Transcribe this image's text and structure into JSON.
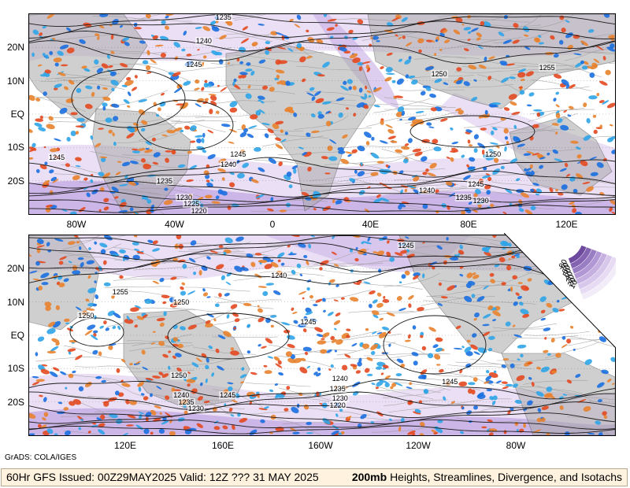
{
  "colors": {
    "isotach_light": "#e6d9f2",
    "isotach_mid": "#c7aee4",
    "isotach_dark": "#8a68b8",
    "divergence_red": "#e3491f",
    "divergence_orange": "#e8822e",
    "convergence_blue": "#1a6fe0",
    "convergence_lightblue": "#2fa4e8",
    "land": "#a9a9a9",
    "contour": "#1a1a1a",
    "streamline": "#9a9a9a",
    "bar_bg": "#fff3df"
  },
  "top_panel": {
    "lat_labels": [
      "20N",
      "10N",
      "EQ",
      "10S",
      "20S"
    ],
    "lon_labels": [
      "80W",
      "40W",
      "0",
      "40E",
      "80E",
      "120E"
    ],
    "contour_labels": [
      {
        "text": "1235",
        "lon": -20,
        "lat": 29
      },
      {
        "text": "1240",
        "lon": -28,
        "lat": 22
      },
      {
        "text": "1245",
        "lon": -32,
        "lat": 15
      },
      {
        "text": "1250",
        "lon": 68,
        "lat": 12
      },
      {
        "text": "1255",
        "lon": 112,
        "lat": 14
      },
      {
        "text": "1245",
        "lon": -88,
        "lat": -13
      },
      {
        "text": "1240",
        "lon": -18,
        "lat": -15
      },
      {
        "text": "1245",
        "lon": -14,
        "lat": -12
      },
      {
        "text": "1235",
        "lon": -44,
        "lat": -20
      },
      {
        "text": "1230",
        "lon": -36,
        "lat": -25
      },
      {
        "text": "1225",
        "lon": -33,
        "lat": -27
      },
      {
        "text": "1220",
        "lon": -30,
        "lat": -29
      },
      {
        "text": "1250",
        "lon": 90,
        "lat": -12
      },
      {
        "text": "1245",
        "lon": 83,
        "lat": -21
      },
      {
        "text": "1240",
        "lon": 63,
        "lat": -23
      },
      {
        "text": "1235",
        "lon": 78,
        "lat": -25
      },
      {
        "text": "1230",
        "lon": 85,
        "lat": -26
      }
    ]
  },
  "bottom_panel": {
    "lat_labels": [
      "20N",
      "10N",
      "EQ",
      "10S",
      "20S"
    ],
    "lon_labels": [
      "120E",
      "160E",
      "160W",
      "120W",
      "80W"
    ],
    "contour_labels": [
      {
        "text": "1245",
        "lon": -125,
        "lat": 27
      },
      {
        "text": "1240",
        "lon": -177,
        "lat": 18
      },
      {
        "text": "1255",
        "lon": 118,
        "lat": 13
      },
      {
        "text": "1250",
        "lon": 143,
        "lat": 10
      },
      {
        "text": "1250",
        "lon": 104,
        "lat": 6
      },
      {
        "text": "1245",
        "lon": -165,
        "lat": 4
      },
      {
        "text": "1250",
        "lon": 142,
        "lat": -12
      },
      {
        "text": "1240",
        "lon": 143,
        "lat": -18
      },
      {
        "text": "1235",
        "lon": 145,
        "lat": -20
      },
      {
        "text": "1230",
        "lon": 149,
        "lat": -22
      },
      {
        "text": "1245",
        "lon": 162,
        "lat": -18
      },
      {
        "text": "1240",
        "lon": -152,
        "lat": -13
      },
      {
        "text": "1235",
        "lon": -153,
        "lat": -16
      },
      {
        "text": "1230",
        "lon": -152,
        "lat": -19
      },
      {
        "text": "1220",
        "lon": -153,
        "lat": -21
      },
      {
        "text": "1245",
        "lon": -107,
        "lat": -14
      }
    ]
  },
  "legend": {
    "values": [
      "80",
      "70",
      "60",
      "50",
      "40",
      "30",
      "20",
      "10"
    ],
    "colors": [
      "#6e4a9e",
      "#8463b1",
      "#9a7ec3",
      "#b197d3",
      "#c5b0e0",
      "#d7c7ea",
      "#e6dbf2",
      "#f2ecf9"
    ]
  },
  "credit": "GrADS: COLA/IGES",
  "footer": {
    "issued": "60Hr GFS Issued: 00Z29MAY2025 Valid: 12Z ??? 31 MAY 2025",
    "level": "200mb",
    "product": "Heights, Streamlines, Divergence, and Isotachs"
  }
}
